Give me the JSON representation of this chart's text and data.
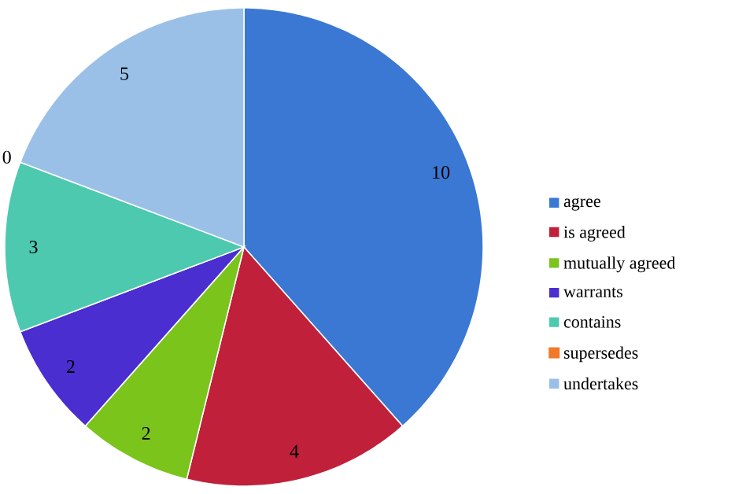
{
  "chart_data": {
    "type": "pie",
    "categories": [
      "agree",
      "is agreed",
      "mutually agreed",
      "warrants",
      "contains",
      "supersedes",
      "undertakes"
    ],
    "values": [
      10,
      4,
      2,
      2,
      3,
      0,
      5
    ],
    "colors": [
      "#3a78d4",
      "#c0203a",
      "#7ac41c",
      "#4a2ed0",
      "#4dc9b0",
      "#f07a2a",
      "#9bc0e8"
    ],
    "value_labels": [
      "10",
      "4",
      "2",
      "2",
      "3",
      "0",
      "5"
    ],
    "legend": "right"
  }
}
